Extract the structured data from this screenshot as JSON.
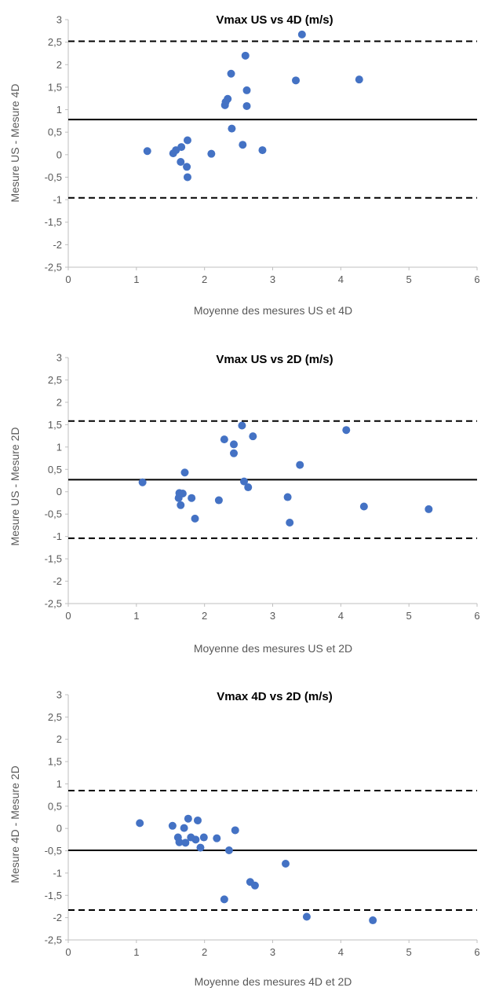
{
  "chart_data": [
    {
      "type": "scatter",
      "title": "Vmax US vs 4D (m/s)",
      "xlabel": "Moyenne des mesures US et 4D",
      "ylabel": "Mesure US - Mesure 4D",
      "xlim": [
        0,
        6
      ],
      "ylim": [
        -2.5,
        3
      ],
      "x_ticks": [
        "0",
        "1",
        "2",
        "3",
        "4",
        "5",
        "6"
      ],
      "y_ticks": [
        "3",
        "2,5",
        "2",
        "1,5",
        "1",
        "0,5",
        "0",
        "-0,5",
        "-1",
        "-1,5",
        "-2",
        "-2,5"
      ],
      "grid": false,
      "mean_line": 0.78,
      "limits_of_agreement": [
        2.52,
        -0.96
      ],
      "color": "#4472C4",
      "points": [
        {
          "x": 1.16,
          "y": 0.08
        },
        {
          "x": 1.54,
          "y": 0.03
        },
        {
          "x": 1.58,
          "y": 0.1
        },
        {
          "x": 1.65,
          "y": -0.16
        },
        {
          "x": 1.66,
          "y": 0.17
        },
        {
          "x": 1.74,
          "y": -0.27
        },
        {
          "x": 1.75,
          "y": -0.5
        },
        {
          "x": 1.75,
          "y": 0.32
        },
        {
          "x": 2.1,
          "y": 0.02
        },
        {
          "x": 2.3,
          "y": 1.1
        },
        {
          "x": 2.31,
          "y": 1.17
        },
        {
          "x": 2.34,
          "y": 1.24
        },
        {
          "x": 2.39,
          "y": 1.8
        },
        {
          "x": 2.4,
          "y": 0.58
        },
        {
          "x": 2.56,
          "y": 0.22
        },
        {
          "x": 2.6,
          "y": 2.2
        },
        {
          "x": 2.62,
          "y": 1.43
        },
        {
          "x": 2.62,
          "y": 1.08
        },
        {
          "x": 2.85,
          "y": 0.1
        },
        {
          "x": 3.34,
          "y": 1.65
        },
        {
          "x": 3.43,
          "y": 2.67
        },
        {
          "x": 4.27,
          "y": 1.67
        }
      ]
    },
    {
      "type": "scatter",
      "title": "Vmax US vs 2D (m/s)",
      "xlabel": "Moyenne des mesures US et 2D",
      "ylabel": "Mesure US - Mesure 2D",
      "xlim": [
        0,
        6
      ],
      "ylim": [
        -2.5,
        3
      ],
      "x_ticks": [
        "0",
        "1",
        "2",
        "3",
        "4",
        "5",
        "6"
      ],
      "y_ticks": [
        "3",
        "2,5",
        "2",
        "1,5",
        "1",
        "0,5",
        "0",
        "-0,5",
        "-1",
        "-1,5",
        "-2",
        "-2,5"
      ],
      "grid": false,
      "mean_line": 0.27,
      "limits_of_agreement": [
        1.58,
        -1.04
      ],
      "color": "#4472C4",
      "points": [
        {
          "x": 1.09,
          "y": 0.21
        },
        {
          "x": 1.62,
          "y": -0.14
        },
        {
          "x": 1.63,
          "y": -0.03
        },
        {
          "x": 1.65,
          "y": -0.3
        },
        {
          "x": 1.68,
          "y": -0.04
        },
        {
          "x": 1.71,
          "y": 0.43
        },
        {
          "x": 1.81,
          "y": -0.14
        },
        {
          "x": 1.86,
          "y": -0.6
        },
        {
          "x": 2.21,
          "y": -0.19
        },
        {
          "x": 2.29,
          "y": 1.17
        },
        {
          "x": 2.43,
          "y": 1.06
        },
        {
          "x": 2.43,
          "y": 0.86
        },
        {
          "x": 2.55,
          "y": 1.48
        },
        {
          "x": 2.58,
          "y": 0.23
        },
        {
          "x": 2.64,
          "y": 0.1
        },
        {
          "x": 2.71,
          "y": 1.24
        },
        {
          "x": 3.22,
          "y": -0.12
        },
        {
          "x": 3.25,
          "y": -0.69
        },
        {
          "x": 3.4,
          "y": 0.6
        },
        {
          "x": 4.08,
          "y": 1.38
        },
        {
          "x": 4.34,
          "y": -0.33
        },
        {
          "x": 5.29,
          "y": -0.39
        }
      ]
    },
    {
      "type": "scatter",
      "title": "Vmax 4D vs 2D (m/s)",
      "xlabel": "Moyenne des mesures 4D et 2D",
      "ylabel": "Mesure 4D - Mesure 2D",
      "xlim": [
        0,
        6
      ],
      "ylim": [
        -2.5,
        3
      ],
      "x_ticks": [
        "0",
        "1",
        "2",
        "3",
        "4",
        "5",
        "6"
      ],
      "y_ticks": [
        "3",
        "2,5",
        "2",
        "1,5",
        "1",
        "0,5",
        "0",
        "-0,5",
        "-1",
        "-1,5",
        "-2",
        "-2,5"
      ],
      "grid": false,
      "mean_line": -0.49,
      "limits_of_agreement": [
        0.85,
        -1.83
      ],
      "color": "#4472C4",
      "points": [
        {
          "x": 1.05,
          "y": 0.12
        },
        {
          "x": 1.53,
          "y": 0.06
        },
        {
          "x": 1.61,
          "y": -0.2
        },
        {
          "x": 1.63,
          "y": -0.31
        },
        {
          "x": 1.7,
          "y": 0.01
        },
        {
          "x": 1.72,
          "y": -0.32
        },
        {
          "x": 1.76,
          "y": 0.22
        },
        {
          "x": 1.8,
          "y": -0.2
        },
        {
          "x": 1.87,
          "y": -0.25
        },
        {
          "x": 1.9,
          "y": 0.18
        },
        {
          "x": 1.94,
          "y": -0.43
        },
        {
          "x": 1.99,
          "y": -0.2
        },
        {
          "x": 2.18,
          "y": -0.22
        },
        {
          "x": 2.29,
          "y": -1.59
        },
        {
          "x": 2.36,
          "y": -0.49
        },
        {
          "x": 2.45,
          "y": -0.04
        },
        {
          "x": 2.67,
          "y": -1.2
        },
        {
          "x": 2.74,
          "y": -1.28
        },
        {
          "x": 3.19,
          "y": -0.79
        },
        {
          "x": 3.5,
          "y": -1.98
        },
        {
          "x": 4.47,
          "y": -2.06
        }
      ]
    }
  ]
}
